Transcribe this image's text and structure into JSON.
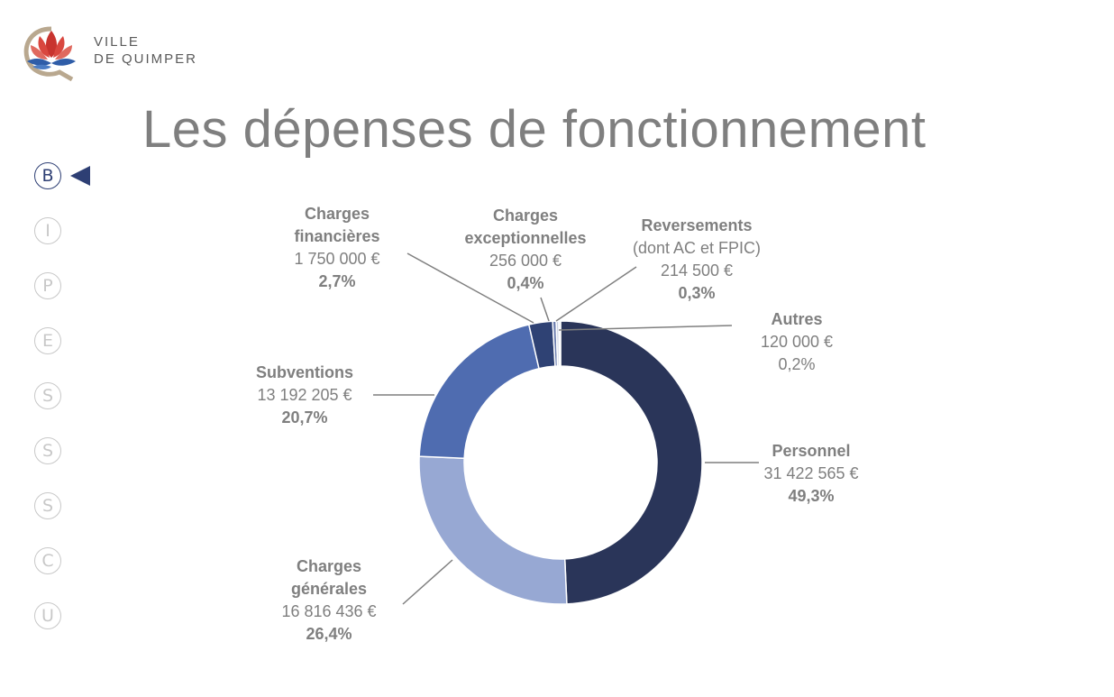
{
  "header": {
    "logo_line1": "VILLE",
    "logo_line2": "DE QUIMPER",
    "title": "Les dépenses de fonctionnement"
  },
  "nav": {
    "items": [
      {
        "letter": "B",
        "active": true
      },
      {
        "letter": "I",
        "active": false
      },
      {
        "letter": "P",
        "active": false
      },
      {
        "letter": "E",
        "active": false
      },
      {
        "letter": "S",
        "active": false
      },
      {
        "letter": "S",
        "active": false
      },
      {
        "letter": "S",
        "active": false
      },
      {
        "letter": "C",
        "active": false
      },
      {
        "letter": "U",
        "active": false
      }
    ]
  },
  "colors": {
    "personnel": "#2a3559",
    "charges_generales": "#97a8d3",
    "subventions": "#4f6cb0",
    "charges_financieres": "#2f4274",
    "charges_exceptionnelles": "#6d7fb0",
    "reversements": "#c9d0e3",
    "autres": "#dcdfe8"
  },
  "chart_data": {
    "type": "pie",
    "title": "Les dépenses de fonctionnement",
    "donut": true,
    "slices": [
      {
        "key": "personnel",
        "name": [
          "Personnel"
        ],
        "amount": "31 422 565 €",
        "percent": "49,3%",
        "value": 49.3
      },
      {
        "key": "charges_generales",
        "name": [
          "Charges",
          "générales"
        ],
        "amount": "16 816 436 €",
        "percent": "26,4%",
        "value": 26.4
      },
      {
        "key": "subventions",
        "name": [
          "Subventions"
        ],
        "amount": "13 192 205 €",
        "percent": "20,7%",
        "value": 20.7
      },
      {
        "key": "charges_financieres",
        "name": [
          "Charges",
          "financières"
        ],
        "amount": "1 750 000 €",
        "percent": "2,7%",
        "value": 2.7
      },
      {
        "key": "charges_exceptionnelles",
        "name": [
          "Charges",
          "exceptionnelles"
        ],
        "amount": "256 000 €",
        "percent": "0,4%",
        "value": 0.4
      },
      {
        "key": "reversements",
        "name": [
          "Reversements"
        ],
        "subtitle": "(dont AC et FPIC)",
        "amount": "214 500 €",
        "percent": "0,3%",
        "value": 0.3
      },
      {
        "key": "autres",
        "name": [
          "Autres"
        ],
        "amount": "120 000 €",
        "percent": "0,2%",
        "value": 0.2
      }
    ]
  }
}
